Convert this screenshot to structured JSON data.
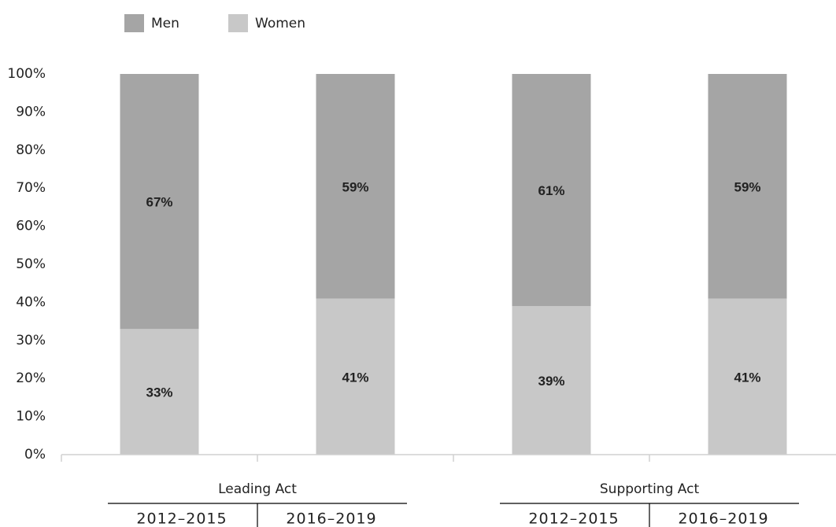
{
  "chart_data": {
    "type": "stacked_bar",
    "categories": [
      "2012–2015",
      "2016–2019",
      "2012–2015",
      "2016–2019"
    ],
    "groups": [
      "Leading Act",
      "Supporting Act"
    ],
    "series": [
      {
        "name": "Women",
        "color": "#c8c8c8",
        "values": [
          33,
          41,
          39,
          41
        ],
        "value_labels": [
          "33%",
          "41%",
          "39%",
          "41%"
        ]
      },
      {
        "name": "Men",
        "color": "#a5a5a5",
        "values": [
          67,
          59,
          61,
          59
        ],
        "value_labels": [
          "67%",
          "59%",
          "61%",
          "59%"
        ]
      }
    ],
    "ylim": [
      0,
      100
    ],
    "yticks": [
      {
        "value": 0,
        "label": "0%"
      },
      {
        "value": 10,
        "label": "10%"
      },
      {
        "value": 20,
        "label": "20%"
      },
      {
        "value": 30,
        "label": "30%"
      },
      {
        "value": 40,
        "label": "40%"
      },
      {
        "value": 50,
        "label": "50%"
      },
      {
        "value": 60,
        "label": "60%"
      },
      {
        "value": 70,
        "label": "70%"
      },
      {
        "value": 80,
        "label": "80%"
      },
      {
        "value": 90,
        "label": "90%"
      },
      {
        "value": 100,
        "label": "100%"
      }
    ],
    "legend": "top-left",
    "grid": false
  }
}
